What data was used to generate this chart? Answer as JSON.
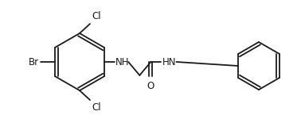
{
  "bg_color": "#ffffff",
  "line_color": "#1a1a1a",
  "text_color": "#1a1a1a",
  "label_Br": "Br",
  "label_Cl1": "Cl",
  "label_Cl2": "Cl",
  "label_NH1": "NH",
  "label_NH2": "HN",
  "label_O": "O",
  "font_size": 8.5,
  "fig_width": 3.78,
  "fig_height": 1.55,
  "dpi": 100
}
